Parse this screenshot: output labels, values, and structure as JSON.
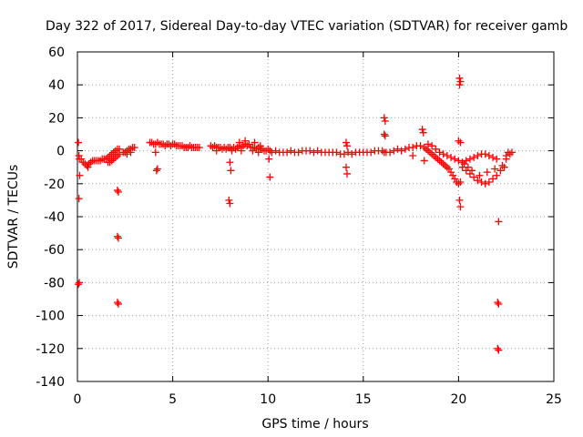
{
  "chart_data": {
    "type": "scatter",
    "title": "Day 322 of 2017, Sidereal Day-to-day VTEC variation (SDTVAR) for receiver gamb",
    "xlabel": "GPS time / hours",
    "ylabel": "SDTVAR / TECUs",
    "xlim": [
      0,
      25
    ],
    "ylim": [
      -140,
      60
    ],
    "xticks": [
      0,
      5,
      10,
      15,
      20,
      25
    ],
    "yticks": [
      -140,
      -120,
      -100,
      -80,
      -60,
      -40,
      -20,
      0,
      20,
      40,
      60
    ],
    "grid": true,
    "marker": "+",
    "color": "#ff0000",
    "series": [
      {
        "name": "SDTVAR",
        "points": [
          [
            0.05,
            5
          ],
          [
            0.08,
            -3
          ],
          [
            0.1,
            -5
          ],
          [
            0.12,
            -15
          ],
          [
            0.08,
            -29
          ],
          [
            0.1,
            -80
          ],
          [
            0.05,
            -81
          ],
          [
            0.2,
            -5
          ],
          [
            0.3,
            -7
          ],
          [
            0.4,
            -8
          ],
          [
            0.5,
            -9
          ],
          [
            0.55,
            -10
          ],
          [
            0.6,
            -8
          ],
          [
            0.7,
            -7
          ],
          [
            0.8,
            -6
          ],
          [
            0.9,
            -6
          ],
          [
            1.0,
            -6
          ],
          [
            1.1,
            -6
          ],
          [
            1.2,
            -6
          ],
          [
            1.3,
            -5
          ],
          [
            1.4,
            -5
          ],
          [
            1.5,
            -5
          ],
          [
            1.6,
            -4
          ],
          [
            1.7,
            -3
          ],
          [
            1.8,
            -2
          ],
          [
            1.9,
            -1
          ],
          [
            2.0,
            0
          ],
          [
            2.1,
            1
          ],
          [
            2.2,
            1
          ],
          [
            1.6,
            -7
          ],
          [
            1.7,
            -7
          ],
          [
            1.8,
            -6
          ],
          [
            1.9,
            -5
          ],
          [
            2.0,
            -4
          ],
          [
            2.1,
            -3
          ],
          [
            2.2,
            -2
          ],
          [
            2.1,
            -24
          ],
          [
            2.15,
            -25
          ],
          [
            2.1,
            -52
          ],
          [
            2.15,
            -53
          ],
          [
            2.1,
            -92
          ],
          [
            2.15,
            -93
          ],
          [
            2.4,
            -1
          ],
          [
            2.5,
            -1
          ],
          [
            2.6,
            0
          ],
          [
            2.7,
            1
          ],
          [
            2.8,
            1
          ],
          [
            2.9,
            2
          ],
          [
            3.0,
            2
          ],
          [
            2.6,
            -2
          ],
          [
            2.8,
            -1
          ],
          [
            3.8,
            5
          ],
          [
            3.9,
            5
          ],
          [
            4.0,
            4
          ],
          [
            4.1,
            4
          ],
          [
            4.2,
            5
          ],
          [
            4.3,
            4
          ],
          [
            4.4,
            4
          ],
          [
            4.5,
            4
          ],
          [
            4.6,
            3
          ],
          [
            4.7,
            4
          ],
          [
            4.8,
            4
          ],
          [
            4.9,
            3
          ],
          [
            5.0,
            4
          ],
          [
            5.1,
            4
          ],
          [
            5.2,
            3
          ],
          [
            5.3,
            3
          ],
          [
            5.4,
            3
          ],
          [
            5.5,
            3
          ],
          [
            5.6,
            2
          ],
          [
            5.7,
            2
          ],
          [
            5.8,
            2
          ],
          [
            5.9,
            3
          ],
          [
            6.0,
            2
          ],
          [
            6.1,
            2
          ],
          [
            6.2,
            2
          ],
          [
            6.3,
            2
          ],
          [
            6.4,
            2
          ],
          [
            4.1,
            -1
          ],
          [
            4.2,
            -11
          ],
          [
            4.15,
            -12
          ],
          [
            7.0,
            3
          ],
          [
            7.1,
            2
          ],
          [
            7.2,
            3
          ],
          [
            7.3,
            2
          ],
          [
            7.4,
            2
          ],
          [
            7.5,
            2
          ],
          [
            7.6,
            1
          ],
          [
            7.7,
            2
          ],
          [
            7.8,
            1
          ],
          [
            7.9,
            2
          ],
          [
            8.0,
            2
          ],
          [
            8.1,
            1
          ],
          [
            8.2,
            2
          ],
          [
            8.3,
            1
          ],
          [
            8.4,
            2
          ],
          [
            8.5,
            3
          ],
          [
            8.6,
            2
          ],
          [
            8.7,
            3
          ],
          [
            8.8,
            4
          ],
          [
            8.9,
            3
          ],
          [
            9.0,
            4
          ],
          [
            9.1,
            2
          ],
          [
            9.2,
            2
          ],
          [
            9.3,
            2
          ],
          [
            9.4,
            1
          ],
          [
            9.5,
            2
          ],
          [
            9.6,
            1
          ],
          [
            9.7,
            1
          ],
          [
            9.8,
            0
          ],
          [
            9.9,
            0
          ],
          [
            10.0,
            1
          ],
          [
            10.1,
            0
          ],
          [
            10.2,
            -1
          ],
          [
            7.3,
            0
          ],
          [
            8.1,
            0
          ],
          [
            8.6,
            0
          ],
          [
            9.2,
            0
          ],
          [
            9.5,
            -1
          ],
          [
            8.5,
            5
          ],
          [
            8.8,
            6
          ],
          [
            9.3,
            5
          ],
          [
            9.6,
            3
          ],
          [
            8.0,
            -7
          ],
          [
            8.05,
            -12
          ],
          [
            7.95,
            -30
          ],
          [
            8.0,
            -32
          ],
          [
            10.05,
            -5
          ],
          [
            10.1,
            -16
          ],
          [
            10.4,
            0
          ],
          [
            10.6,
            -1
          ],
          [
            10.8,
            -1
          ],
          [
            11.0,
            -1
          ],
          [
            11.2,
            0
          ],
          [
            11.4,
            -1
          ],
          [
            11.6,
            -1
          ],
          [
            11.8,
            0
          ],
          [
            12.0,
            0
          ],
          [
            12.2,
            0
          ],
          [
            12.4,
            -1
          ],
          [
            12.6,
            0
          ],
          [
            12.8,
            -1
          ],
          [
            13.0,
            -1
          ],
          [
            13.2,
            -1
          ],
          [
            13.4,
            -1
          ],
          [
            13.6,
            -1
          ],
          [
            13.8,
            -2
          ],
          [
            14.0,
            -2
          ],
          [
            14.2,
            -1
          ],
          [
            14.4,
            -2
          ],
          [
            14.6,
            -1
          ],
          [
            14.8,
            -1
          ],
          [
            15.0,
            -1
          ],
          [
            15.2,
            -1
          ],
          [
            15.4,
            -1
          ],
          [
            15.6,
            0
          ],
          [
            15.8,
            0
          ],
          [
            16.0,
            0
          ],
          [
            16.2,
            -1
          ],
          [
            16.4,
            -1
          ],
          [
            16.6,
            0
          ],
          [
            16.8,
            1
          ],
          [
            17.0,
            0
          ],
          [
            17.2,
            1
          ],
          [
            17.4,
            2
          ],
          [
            17.6,
            2
          ],
          [
            17.8,
            3
          ],
          [
            18.0,
            3
          ],
          [
            18.2,
            2
          ],
          [
            14.1,
            5
          ],
          [
            14.15,
            3
          ],
          [
            14.1,
            -10
          ],
          [
            14.15,
            -14
          ],
          [
            16.1,
            20
          ],
          [
            16.15,
            18
          ],
          [
            16.1,
            10
          ],
          [
            16.15,
            9
          ],
          [
            16.1,
            -1
          ],
          [
            18.1,
            13
          ],
          [
            18.15,
            11
          ],
          [
            18.2,
            -6
          ],
          [
            17.6,
            -3
          ],
          [
            18.3,
            1
          ],
          [
            18.4,
            0
          ],
          [
            18.5,
            -1
          ],
          [
            18.6,
            -2
          ],
          [
            18.7,
            -3
          ],
          [
            18.8,
            -4
          ],
          [
            18.9,
            -5
          ],
          [
            19.0,
            -6
          ],
          [
            19.1,
            -7
          ],
          [
            19.2,
            -8
          ],
          [
            19.3,
            -9
          ],
          [
            19.4,
            -10
          ],
          [
            19.5,
            -11
          ],
          [
            19.6,
            -13
          ],
          [
            19.7,
            -15
          ],
          [
            19.8,
            -17
          ],
          [
            19.9,
            -19
          ],
          [
            20.0,
            -20
          ],
          [
            20.1,
            -19
          ],
          [
            18.4,
            4
          ],
          [
            18.6,
            3
          ],
          [
            18.8,
            1
          ],
          [
            19.0,
            -1
          ],
          [
            19.2,
            -2
          ],
          [
            19.4,
            -3
          ],
          [
            19.6,
            -4
          ],
          [
            19.8,
            -5
          ],
          [
            20.0,
            -6
          ],
          [
            20.2,
            -7
          ],
          [
            20.4,
            -6
          ],
          [
            20.6,
            -5
          ],
          [
            20.8,
            -4
          ],
          [
            21.0,
            -3
          ],
          [
            21.2,
            -2
          ],
          [
            21.4,
            -2
          ],
          [
            21.6,
            -3
          ],
          [
            21.8,
            -4
          ],
          [
            22.0,
            -5
          ],
          [
            20.2,
            -10
          ],
          [
            20.4,
            -12
          ],
          [
            20.6,
            -14
          ],
          [
            20.8,
            -16
          ],
          [
            21.0,
            -18
          ],
          [
            21.2,
            -19
          ],
          [
            21.4,
            -20
          ],
          [
            21.6,
            -19
          ],
          [
            21.8,
            -17
          ],
          [
            22.0,
            -15
          ],
          [
            22.2,
            -12
          ],
          [
            22.4,
            -10
          ],
          [
            20.3,
            -8
          ],
          [
            20.5,
            -10
          ],
          [
            20.7,
            -12
          ],
          [
            21.1,
            -15
          ],
          [
            21.5,
            -13
          ],
          [
            21.9,
            -11
          ],
          [
            22.3,
            -9
          ],
          [
            22.5,
            -5
          ],
          [
            22.7,
            -2
          ],
          [
            22.8,
            -1
          ],
          [
            22.5,
            -3
          ],
          [
            22.6,
            -1
          ],
          [
            20.05,
            44
          ],
          [
            20.1,
            42
          ],
          [
            20.05,
            40
          ],
          [
            20.0,
            6
          ],
          [
            20.1,
            5
          ],
          [
            20.05,
            -30
          ],
          [
            20.1,
            -34
          ],
          [
            22.1,
            -43
          ],
          [
            22.05,
            -92
          ],
          [
            22.1,
            -93
          ],
          [
            22.05,
            -120
          ],
          [
            22.1,
            -121
          ]
        ]
      }
    ]
  }
}
